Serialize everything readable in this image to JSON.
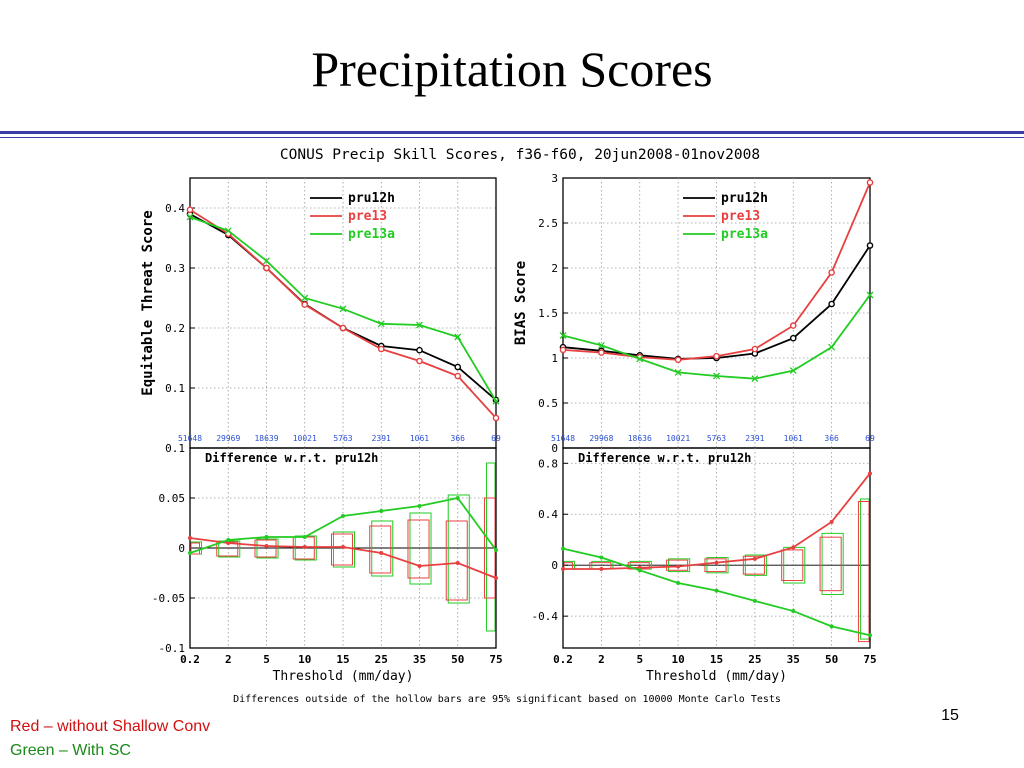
{
  "slide": {
    "title": "Precipitation Scores",
    "page_number": "15",
    "legend_note_red": "Red – without Shallow Conv",
    "legend_note_green": "Green – With SC"
  },
  "figure": {
    "title": "CONUS Precip Skill Scores, f36-f60, 20jun2008-01nov2008",
    "footnote": "Differences outside of the hollow bars are 95% significant based on 10000 Monte Carlo Tests",
    "colors": {
      "pru12h": "#000000",
      "pre13": "#e84040",
      "pre13a": "#22cc22",
      "counts": "#2a4fd6"
    }
  },
  "chart_data": [
    {
      "type": "line",
      "panel": "ets",
      "ylabel": "Equitable Threat Score",
      "xlabel": "",
      "categories": [
        "0.2",
        "2",
        "5",
        "10",
        "15",
        "25",
        "35",
        "50",
        "75"
      ],
      "counts": [
        "51648",
        "29969",
        "18639",
        "10021",
        "5763",
        "2391",
        "1061",
        "366",
        "69"
      ],
      "ylim": [
        0,
        0.45
      ],
      "yticks": [
        "0.1",
        "0.2",
        "0.3",
        "0.4"
      ],
      "ytick_values": [
        0.1,
        0.2,
        0.3,
        0.4
      ],
      "series": [
        {
          "name": "pru12h",
          "marker": "circle",
          "values": [
            0.39,
            0.355,
            0.3,
            0.24,
            0.2,
            0.17,
            0.163,
            0.135,
            0.08
          ]
        },
        {
          "name": "pre13",
          "marker": "circle",
          "values": [
            0.397,
            0.357,
            0.3,
            0.239,
            0.2,
            0.165,
            0.145,
            0.12,
            0.05
          ]
        },
        {
          "name": "pre13a",
          "marker": "x",
          "values": [
            0.385,
            0.362,
            0.312,
            0.25,
            0.232,
            0.207,
            0.205,
            0.185,
            0.078
          ]
        }
      ]
    },
    {
      "type": "line",
      "panel": "bias",
      "ylabel": "BIAS Score",
      "xlabel": "",
      "categories": [
        "0.2",
        "2",
        "5",
        "10",
        "15",
        "25",
        "35",
        "50",
        "75"
      ],
      "counts": [
        "51648",
        "29968",
        "18636",
        "10021",
        "5763",
        "2391",
        "1061",
        "366",
        "69"
      ],
      "ylim": [
        0,
        3
      ],
      "yticks": [
        "0",
        "0.5",
        "1",
        "1.5",
        "2",
        "2.5",
        "3"
      ],
      "ytick_values": [
        0,
        0.5,
        1,
        1.5,
        2,
        2.5,
        3
      ],
      "series": [
        {
          "name": "pru12h",
          "marker": "circle",
          "values": [
            1.12,
            1.08,
            1.03,
            0.99,
            1.0,
            1.05,
            1.22,
            1.6,
            2.25
          ]
        },
        {
          "name": "pre13",
          "marker": "circle",
          "values": [
            1.09,
            1.06,
            1.01,
            0.98,
            1.02,
            1.1,
            1.36,
            1.95,
            2.95
          ]
        },
        {
          "name": "pre13a",
          "marker": "x",
          "values": [
            1.25,
            1.14,
            0.99,
            0.84,
            0.8,
            0.77,
            0.86,
            1.12,
            1.7
          ]
        }
      ]
    },
    {
      "type": "line",
      "panel": "ets-diff",
      "subtitle": "Difference w.r.t. pru12h",
      "xlabel": "Threshold (mm/day)",
      "categories": [
        "0.2",
        "2",
        "5",
        "10",
        "15",
        "25",
        "35",
        "50",
        "75"
      ],
      "ylim": [
        -0.1,
        0.1
      ],
      "yticks": [
        "-0.1",
        "-0.05",
        "0",
        "0.05",
        "0.1"
      ],
      "ytick_values": [
        -0.1,
        -0.05,
        0,
        0.05,
        0.1
      ],
      "series": [
        {
          "name": "pre13",
          "values": [
            0.01,
            0.005,
            0.002,
            0.001,
            0.001,
            -0.005,
            -0.018,
            -0.015,
            -0.03
          ]
        },
        {
          "name": "pre13a",
          "values": [
            -0.005,
            0.008,
            0.011,
            0.011,
            0.032,
            0.037,
            0.042,
            0.05,
            -0.002
          ]
        }
      ],
      "significance_bars": {
        "pre13": [
          [
            -0.006,
            0.005
          ],
          [
            -0.008,
            0.006
          ],
          [
            -0.009,
            0.008
          ],
          [
            -0.011,
            0.011
          ],
          [
            -0.017,
            0.014
          ],
          [
            -0.025,
            0.022
          ],
          [
            -0.03,
            0.028
          ],
          [
            -0.052,
            0.027
          ],
          [
            -0.05,
            0.05
          ]
        ],
        "pre13a": [
          [
            -0.006,
            0.006
          ],
          [
            -0.009,
            0.007
          ],
          [
            -0.01,
            0.009
          ],
          [
            -0.012,
            0.012
          ],
          [
            -0.019,
            0.016
          ],
          [
            -0.028,
            0.027
          ],
          [
            -0.036,
            0.035
          ],
          [
            -0.055,
            0.053
          ],
          [
            -0.083,
            0.085
          ]
        ]
      }
    },
    {
      "type": "line",
      "panel": "bias-diff",
      "subtitle": "Difference w.r.t. pru12h",
      "xlabel": "Threshold (mm/day)",
      "categories": [
        "0.2",
        "2",
        "5",
        "10",
        "15",
        "25",
        "35",
        "50",
        "75"
      ],
      "ylim": [
        -0.65,
        0.92
      ],
      "yticks": [
        "-0.4",
        "0",
        "0.4",
        "0.8"
      ],
      "ytick_values": [
        -0.4,
        0,
        0.4,
        0.8
      ],
      "series": [
        {
          "name": "pre13",
          "values": [
            -0.03,
            -0.03,
            -0.02,
            -0.01,
            0.02,
            0.05,
            0.14,
            0.34,
            0.72
          ]
        },
        {
          "name": "pre13a",
          "values": [
            0.13,
            0.06,
            -0.04,
            -0.14,
            -0.2,
            -0.28,
            -0.36,
            -0.48,
            -0.55
          ]
        }
      ],
      "significance_bars": {
        "pre13": [
          [
            -0.03,
            0.02
          ],
          [
            -0.03,
            0.02
          ],
          [
            -0.03,
            0.02
          ],
          [
            -0.04,
            0.04
          ],
          [
            -0.05,
            0.05
          ],
          [
            -0.07,
            0.07
          ],
          [
            -0.12,
            0.12
          ],
          [
            -0.2,
            0.22
          ],
          [
            -0.6,
            0.5
          ]
        ],
        "pre13a": [
          [
            -0.03,
            0.03
          ],
          [
            -0.03,
            0.03
          ],
          [
            -0.03,
            0.03
          ],
          [
            -0.05,
            0.05
          ],
          [
            -0.06,
            0.06
          ],
          [
            -0.08,
            0.08
          ],
          [
            -0.14,
            0.14
          ],
          [
            -0.23,
            0.25
          ],
          [
            -0.58,
            0.52
          ]
        ]
      }
    }
  ]
}
